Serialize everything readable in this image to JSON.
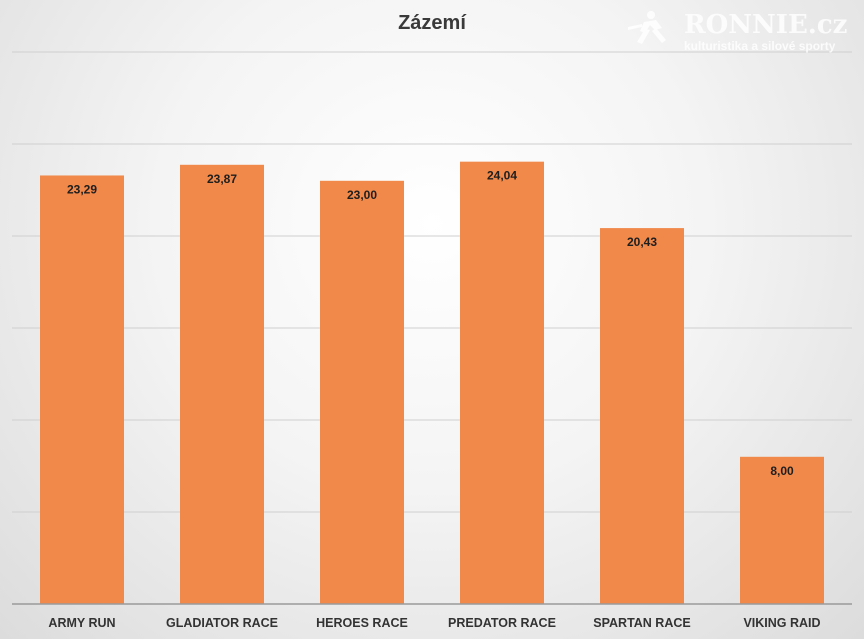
{
  "chart_data": {
    "type": "bar",
    "title": "Zázemí",
    "categories": [
      "ARMY RUN",
      "GLADIATOR RACE",
      "HEROES RACE",
      "PREDATOR RACE",
      "SPARTAN RACE",
      "VIKING RAID"
    ],
    "values": [
      23.29,
      23.87,
      23.0,
      24.04,
      20.43,
      8.0
    ],
    "value_labels": [
      "23,29",
      "23,87",
      "23,00",
      "24,04",
      "20,43",
      "8,00"
    ],
    "ylim": [
      0,
      30
    ],
    "grid": true,
    "bar_color": "#f0894a"
  },
  "watermark": {
    "brand": "RONNIE.cz",
    "tagline": "kulturistika a silové sporty"
  }
}
